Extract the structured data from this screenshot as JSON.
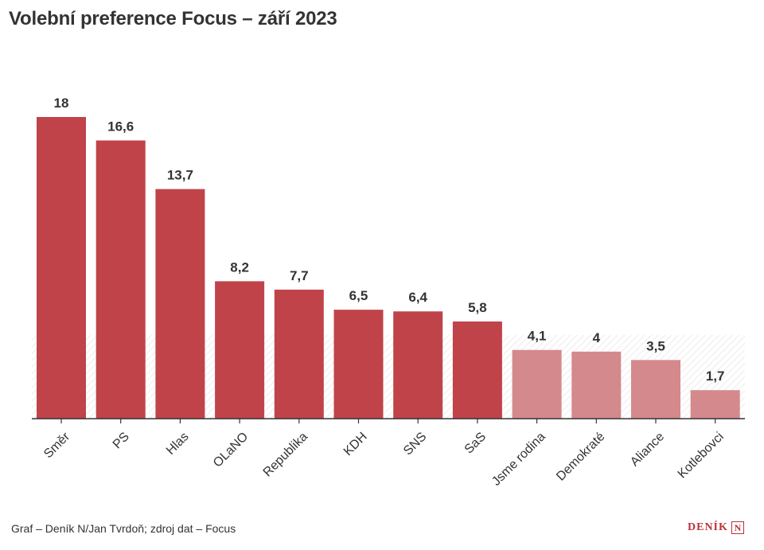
{
  "title": "Volební preference Focus – září 2023",
  "credit": "Graf – Deník N/Jan Tvrdoň; zdroj dat – Focus",
  "logo": {
    "text": "DENÍK",
    "letter": "N"
  },
  "colors": {
    "above": "#c0434a",
    "below": "#d4898c",
    "label": "#333333",
    "accent": "#b7343b"
  },
  "chart_data": {
    "type": "bar",
    "title": "Volební preference Focus – září 2023",
    "categories": [
      "Směr",
      "PS",
      "Hlas",
      "OLaNO",
      "Republika",
      "KDH",
      "SNS",
      "SaS",
      "Jsme rodina",
      "Demokraté",
      "Aliance",
      "Kotlebovci"
    ],
    "values": [
      18,
      16.6,
      13.7,
      8.2,
      7.7,
      6.5,
      6.4,
      5.8,
      4.1,
      4,
      3.5,
      1.7
    ],
    "value_labels": [
      "18",
      "16,6",
      "13,7",
      "8,2",
      "7,7",
      "6,5",
      "6,4",
      "5,8",
      "4,1",
      "4",
      "3,5",
      "1,7"
    ],
    "threshold": 5,
    "ylim": [
      0,
      18
    ],
    "grid": false
  }
}
